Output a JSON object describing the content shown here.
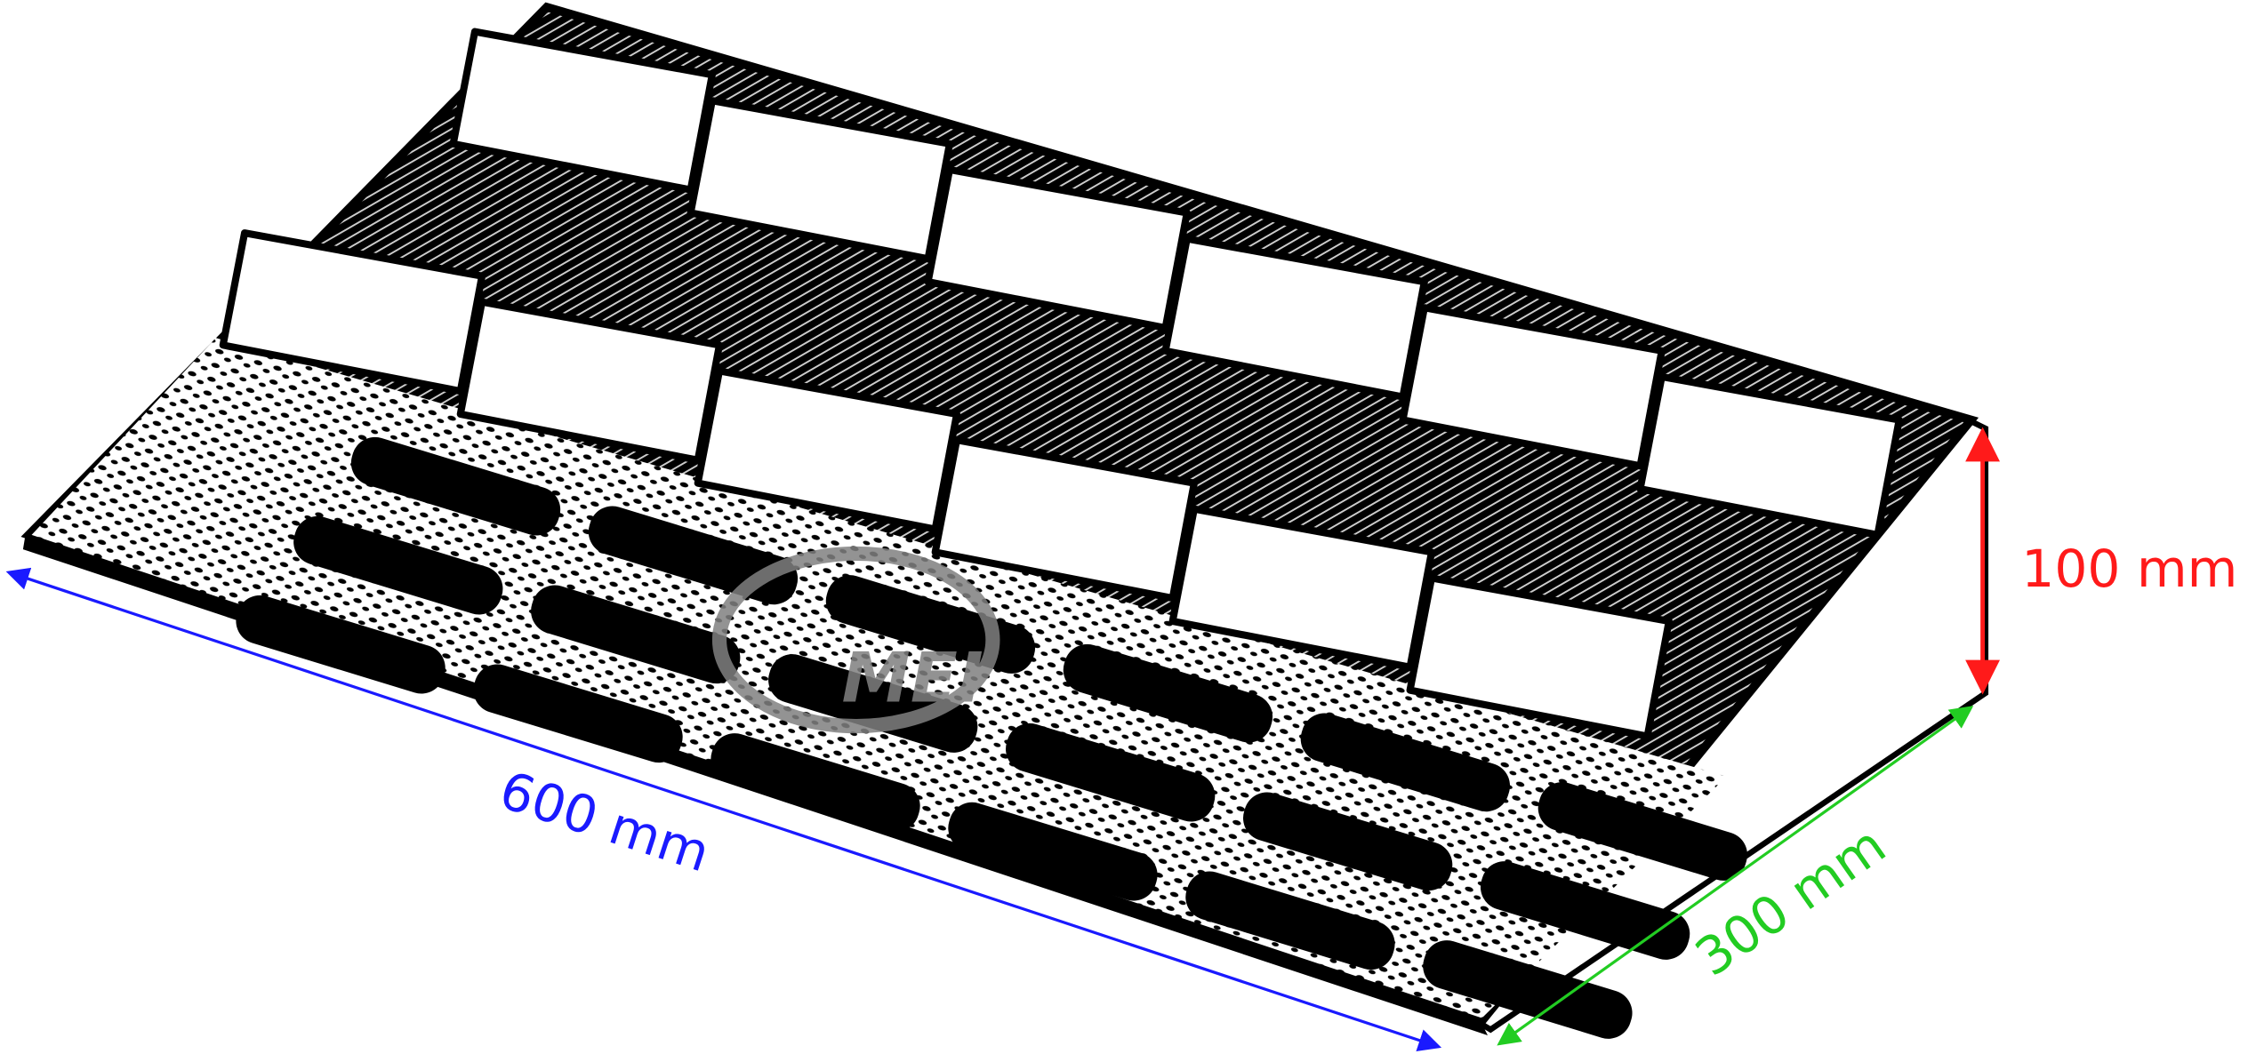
{
  "diagram": {
    "logo_text": "MEI",
    "dimensions": {
      "length": {
        "label": "600 mm",
        "color": "#1a1aff"
      },
      "width": {
        "label": "300 mm",
        "color": "#22cc22"
      },
      "height": {
        "label": "100 mm",
        "color": "#ff1a1a"
      }
    },
    "colors": {
      "ramp": "#000000",
      "pads": "#ffffff",
      "logo": "#808080"
    }
  }
}
